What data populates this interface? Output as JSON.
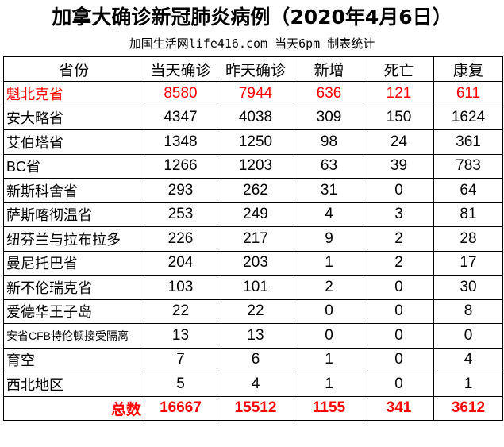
{
  "title": "加拿大确诊新冠肺炎病例（2020年4月6日）",
  "subtitle": "加国生活网life416.com 当天6pm 制表统计",
  "headers": [
    "省份",
    "当天确诊",
    "昨天确诊",
    "新增",
    "死亡",
    "康复"
  ],
  "rows": [
    [
      "魁北克省",
      "8580",
      "7944",
      "636",
      "121",
      "611"
    ],
    [
      "安大略省",
      "4347",
      "4038",
      "309",
      "150",
      "1624"
    ],
    [
      "艾伯塔省",
      "1348",
      "1250",
      "98",
      "24",
      "361"
    ],
    [
      "BC省",
      "1266",
      "1203",
      "63",
      "39",
      "783"
    ],
    [
      "新斯科舍省",
      "293",
      "262",
      "31",
      "0",
      "64"
    ],
    [
      "萨斯喀彻温省",
      "253",
      "249",
      "4",
      "3",
      "81"
    ],
    [
      "纽芬兰与拉布拉多",
      "226",
      "217",
      "9",
      "2",
      "28"
    ],
    [
      "曼尼托巴省",
      "204",
      "203",
      "1",
      "2",
      "17"
    ],
    [
      "新不伦瑞克省",
      "103",
      "101",
      "2",
      "0",
      "30"
    ],
    [
      "爱德华王子岛",
      "22",
      "22",
      "0",
      "0",
      "8"
    ],
    [
      "安省CFB特伦顿接受隔离",
      "13",
      "13",
      "0",
      "0",
      "0"
    ],
    [
      "育空",
      "7",
      "6",
      "1",
      "0",
      "4"
    ],
    [
      "西北地区",
      "5",
      "4",
      "1",
      "0",
      "1"
    ]
  ],
  "total": [
    "总数",
    "16667",
    "15512",
    "1155",
    "341",
    "3612"
  ],
  "highlight_color": "#ff0000"
}
